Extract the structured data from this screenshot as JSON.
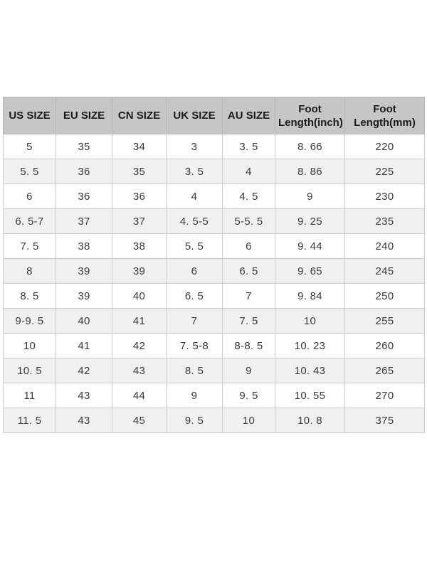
{
  "colors": {
    "page_bg": "#ffffff",
    "header_bg": "#c6c6c6",
    "row_bg": "#ffffff",
    "alt_row_bg": "#f0f0f0",
    "border": "#cccccc",
    "header_text": "#1b1b1b",
    "cell_text": "#3a3a3a"
  },
  "chart_data": {
    "type": "table",
    "columns": [
      "US SIZE",
      "EU SIZE",
      "CN SIZE",
      "UK SIZE",
      "AU SIZE",
      "Foot Length(inch)",
      "Foot Length(mm)"
    ],
    "rows": [
      [
        "5",
        "35",
        "34",
        "3",
        "3. 5",
        "8. 66",
        "220"
      ],
      [
        "5. 5",
        "36",
        "35",
        "3. 5",
        "4",
        "8. 86",
        "225"
      ],
      [
        "6",
        "36",
        "36",
        "4",
        "4. 5",
        "9",
        "230"
      ],
      [
        "6. 5-7",
        "37",
        "37",
        "4. 5-5",
        "5-5. 5",
        "9. 25",
        "235"
      ],
      [
        "7. 5",
        "38",
        "38",
        "5. 5",
        "6",
        "9. 44",
        "240"
      ],
      [
        "8",
        "39",
        "39",
        "6",
        "6. 5",
        "9. 65",
        "245"
      ],
      [
        "8. 5",
        "39",
        "40",
        "6. 5",
        "7",
        "9. 84",
        "250"
      ],
      [
        "9-9. 5",
        "40",
        "41",
        "7",
        "7. 5",
        "10",
        "255"
      ],
      [
        "10",
        "41",
        "42",
        "7. 5-8",
        "8-8. 5",
        "10. 23",
        "260"
      ],
      [
        "10. 5",
        "42",
        "43",
        "8. 5",
        "9",
        "10. 43",
        "265"
      ],
      [
        "11",
        "43",
        "44",
        "9",
        "9. 5",
        "10. 55",
        "270"
      ],
      [
        "11. 5",
        "43",
        "45",
        "9. 5",
        "10",
        "10. 8",
        "375"
      ]
    ],
    "layout": {
      "grid": true,
      "header_rows": 1,
      "alternating_row_shading": true
    }
  }
}
